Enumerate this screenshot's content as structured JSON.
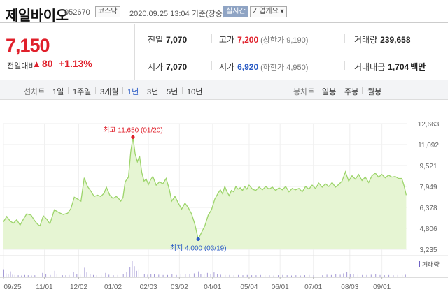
{
  "header": {
    "title": "제일바이오",
    "code": "052670",
    "market": "코스닥",
    "datetime": "2020.09.25 13:04 기준(장중)",
    "realtime": "실시간",
    "overview": "기업개요 ▾"
  },
  "price": {
    "current": "7,150",
    "change_label": "전일대비",
    "change_arrow": "▲",
    "change_value": "80",
    "change_pct": "+1.13%"
  },
  "stats": {
    "prev_close": {
      "label": "전일",
      "value": "7,070"
    },
    "high": {
      "label": "고가",
      "value": "7,200",
      "sub": "(상한가 9,190)"
    },
    "volume": {
      "label": "거래량",
      "value": "239,658"
    },
    "open": {
      "label": "시가",
      "value": "7,070"
    },
    "low": {
      "label": "저가",
      "value": "6,920",
      "sub": "(하한가 4,950)"
    },
    "amount": {
      "label": "거래대금",
      "value": "1,704",
      "unit": "백만"
    }
  },
  "toolbar": {
    "line_label": "선차트",
    "ranges": [
      "1일",
      "1주일",
      "3개월",
      "1년",
      "3년",
      "5년",
      "10년"
    ],
    "active_range": "1년",
    "candle_label": "봉차트",
    "candles": [
      "일봉",
      "주봉",
      "월봉"
    ]
  },
  "colors": {
    "up": "#e0202b",
    "down": "#2a5bc5",
    "line": "#9cd46a",
    "area": "#e6f5d3",
    "volume": "#a59bd6"
  },
  "chart_data": {
    "type": "area",
    "y_ticks": [
      "12,663",
      "11,092",
      "9,521",
      "7,949",
      "6,378",
      "4,806",
      "3,235"
    ],
    "ylim": [
      3235,
      12663
    ],
    "x_ticks": [
      "09/25",
      "11/01",
      "12/02",
      "01/02",
      "02/03",
      "03/02",
      "04/01",
      "05/04",
      "06/01",
      "07/01",
      "08/03",
      "09/01"
    ],
    "x_tick_positions": [
      0,
      37,
      68,
      99,
      131,
      159,
      189,
      222,
      250,
      280,
      313,
      342
    ],
    "x_end": 365,
    "max_annotation": "최고 11,650 (01/20)",
    "max_point": {
      "x": 117,
      "y": 11650
    },
    "min_annotation": "최저 4,000 (03/19)",
    "min_point": {
      "x": 176,
      "y": 4000
    },
    "volume_label": "거래량",
    "series": [
      {
        "values": [
          [
            0,
            5300
          ],
          [
            3,
            5700
          ],
          [
            6,
            5350
          ],
          [
            9,
            5200
          ],
          [
            12,
            5450
          ],
          [
            15,
            5050
          ],
          [
            18,
            5500
          ],
          [
            21,
            5900
          ],
          [
            25,
            5800
          ],
          [
            28,
            5400
          ],
          [
            31,
            5100
          ],
          [
            33,
            5000
          ],
          [
            36,
            5750
          ],
          [
            39,
            5500
          ],
          [
            42,
            5150
          ],
          [
            46,
            6200
          ],
          [
            50,
            6000
          ],
          [
            54,
            5850
          ],
          [
            58,
            5950
          ],
          [
            61,
            6300
          ],
          [
            64,
            7150
          ],
          [
            67,
            7000
          ],
          [
            70,
            6850
          ],
          [
            73,
            8600
          ],
          [
            76,
            7950
          ],
          [
            79,
            7600
          ],
          [
            82,
            7200
          ],
          [
            85,
            7300
          ],
          [
            88,
            7200
          ],
          [
            91,
            7450
          ],
          [
            93,
            7900
          ],
          [
            96,
            7300
          ],
          [
            99,
            7050
          ],
          [
            102,
            7200
          ],
          [
            104,
            7050
          ],
          [
            106,
            6850
          ],
          [
            108,
            7100
          ],
          [
            110,
            8300
          ],
          [
            113,
            8650
          ],
          [
            115,
            10550
          ],
          [
            117,
            11650
          ],
          [
            119,
            10400
          ],
          [
            121,
            9800
          ],
          [
            123,
            10250
          ],
          [
            125,
            9000
          ],
          [
            127,
            8350
          ],
          [
            129,
            8500
          ],
          [
            131,
            8100
          ],
          [
            133,
            8450
          ],
          [
            135,
            8700
          ],
          [
            138,
            8050
          ],
          [
            141,
            8300
          ],
          [
            144,
            8150
          ],
          [
            147,
            8550
          ],
          [
            150,
            7700
          ],
          [
            152,
            6850
          ],
          [
            155,
            7200
          ],
          [
            158,
            6700
          ],
          [
            161,
            6250
          ],
          [
            164,
            6700
          ],
          [
            167,
            6350
          ],
          [
            170,
            5900
          ],
          [
            173,
            5100
          ],
          [
            176,
            4000
          ],
          [
            179,
            4500
          ],
          [
            182,
            5000
          ],
          [
            185,
            5800
          ],
          [
            188,
            6200
          ],
          [
            191,
            7000
          ],
          [
            194,
            7450
          ],
          [
            196,
            7700
          ],
          [
            198,
            7400
          ],
          [
            200,
            7950
          ],
          [
            202,
            7550
          ],
          [
            204,
            7250
          ],
          [
            206,
            7650
          ],
          [
            208,
            7550
          ],
          [
            210,
            7950
          ],
          [
            212,
            7750
          ],
          [
            214,
            7850
          ],
          [
            216,
            7650
          ],
          [
            218,
            7950
          ],
          [
            220,
            7750
          ],
          [
            222,
            8050
          ],
          [
            225,
            7750
          ],
          [
            228,
            7650
          ],
          [
            231,
            7900
          ],
          [
            234,
            7700
          ],
          [
            237,
            7950
          ],
          [
            240,
            7750
          ],
          [
            243,
            7900
          ],
          [
            246,
            7650
          ],
          [
            249,
            7850
          ],
          [
            252,
            7700
          ],
          [
            255,
            7950
          ],
          [
            258,
            7550
          ],
          [
            261,
            7800
          ],
          [
            264,
            7700
          ],
          [
            267,
            7800
          ],
          [
            270,
            7550
          ],
          [
            273,
            7950
          ],
          [
            276,
            7750
          ],
          [
            279,
            8050
          ],
          [
            282,
            7800
          ],
          [
            285,
            8200
          ],
          [
            288,
            7900
          ],
          [
            291,
            8150
          ],
          [
            294,
            7950
          ],
          [
            297,
            8250
          ],
          [
            300,
            7900
          ],
          [
            303,
            8100
          ],
          [
            306,
            8350
          ],
          [
            309,
            9050
          ],
          [
            312,
            8350
          ],
          [
            315,
            8750
          ],
          [
            318,
            8500
          ],
          [
            321,
            8850
          ],
          [
            324,
            8400
          ],
          [
            327,
            8650
          ],
          [
            330,
            8250
          ],
          [
            333,
            8750
          ],
          [
            336,
            8950
          ],
          [
            339,
            8650
          ],
          [
            342,
            8850
          ],
          [
            345,
            8600
          ],
          [
            348,
            8800
          ],
          [
            351,
            8650
          ],
          [
            354,
            8700
          ],
          [
            357,
            8550
          ],
          [
            360,
            8550
          ],
          [
            362,
            8000
          ],
          [
            364,
            7300
          ]
        ]
      }
    ],
    "volume": [
      [
        0,
        28
      ],
      [
        2,
        12
      ],
      [
        4,
        8
      ],
      [
        6,
        20
      ],
      [
        8,
        7
      ],
      [
        10,
        6
      ],
      [
        13,
        5
      ],
      [
        16,
        4
      ],
      [
        19,
        6
      ],
      [
        22,
        5
      ],
      [
        25,
        4
      ],
      [
        28,
        5
      ],
      [
        31,
        4
      ],
      [
        35,
        14
      ],
      [
        38,
        8
      ],
      [
        42,
        6
      ],
      [
        46,
        22
      ],
      [
        48,
        10
      ],
      [
        50,
        7
      ],
      [
        53,
        5
      ],
      [
        56,
        5
      ],
      [
        59,
        6
      ],
      [
        63,
        18
      ],
      [
        66,
        10
      ],
      [
        69,
        7
      ],
      [
        73,
        34
      ],
      [
        75,
        16
      ],
      [
        78,
        8
      ],
      [
        81,
        6
      ],
      [
        84,
        5
      ],
      [
        88,
        5
      ],
      [
        92,
        14
      ],
      [
        95,
        7
      ],
      [
        99,
        5
      ],
      [
        103,
        6
      ],
      [
        108,
        10
      ],
      [
        111,
        18
      ],
      [
        114,
        36
      ],
      [
        116,
        62
      ],
      [
        118,
        40
      ],
      [
        120,
        22
      ],
      [
        122,
        28
      ],
      [
        124,
        14
      ],
      [
        127,
        10
      ],
      [
        130,
        7
      ],
      [
        133,
        8
      ],
      [
        136,
        9
      ],
      [
        140,
        7
      ],
      [
        144,
        6
      ],
      [
        148,
        6
      ],
      [
        152,
        10
      ],
      [
        156,
        6
      ],
      [
        160,
        8
      ],
      [
        164,
        9
      ],
      [
        168,
        8
      ],
      [
        172,
        12
      ],
      [
        176,
        20
      ],
      [
        178,
        10
      ],
      [
        181,
        8
      ],
      [
        184,
        14
      ],
      [
        187,
        10
      ],
      [
        190,
        16
      ],
      [
        193,
        8
      ],
      [
        196,
        7
      ],
      [
        200,
        6
      ],
      [
        204,
        6
      ],
      [
        208,
        5
      ],
      [
        212,
        6
      ],
      [
        216,
        5
      ],
      [
        220,
        6
      ],
      [
        224,
        5
      ],
      [
        228,
        5
      ],
      [
        232,
        6
      ],
      [
        236,
        5
      ],
      [
        240,
        5
      ],
      [
        244,
        4
      ],
      [
        248,
        5
      ],
      [
        252,
        6
      ],
      [
        256,
        5
      ],
      [
        260,
        4
      ],
      [
        264,
        5
      ],
      [
        268,
        4
      ],
      [
        272,
        5
      ],
      [
        276,
        6
      ],
      [
        280,
        5
      ],
      [
        284,
        6
      ],
      [
        288,
        5
      ],
      [
        292,
        7
      ],
      [
        296,
        6
      ],
      [
        300,
        8
      ],
      [
        304,
        7
      ],
      [
        307,
        12
      ],
      [
        310,
        18
      ],
      [
        313,
        10
      ],
      [
        316,
        8
      ],
      [
        320,
        7
      ],
      [
        324,
        6
      ],
      [
        328,
        6
      ],
      [
        332,
        7
      ],
      [
        336,
        8
      ],
      [
        340,
        6
      ],
      [
        344,
        5
      ],
      [
        348,
        6
      ],
      [
        352,
        5
      ],
      [
        356,
        6
      ],
      [
        360,
        5
      ],
      [
        363,
        7
      ]
    ]
  }
}
